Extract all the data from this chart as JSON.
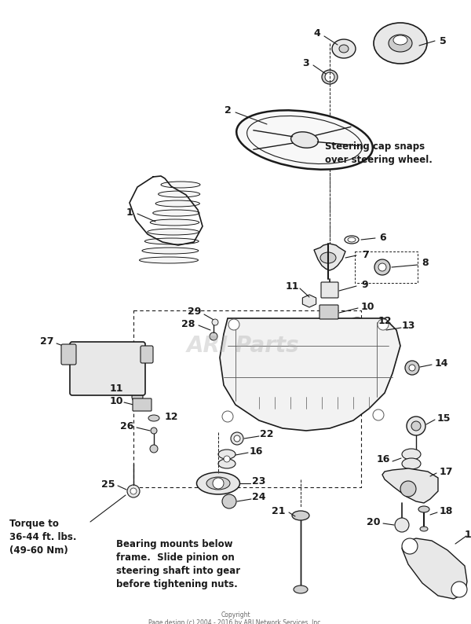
{
  "background_color": "#ffffff",
  "watermark": "ARI Parts",
  "copyright": "Copyright\nPage design (c) 2004 - 2016 by ARI Network Services, Inc.",
  "annotation_top_right": "Steering cap snaps\nover steering wheel.",
  "annotation_bottom_left_1": "Torque to\n36-44 ft. lbs.\n(49-60 Nm)",
  "annotation_bottom_left_2": "Bearing mounts below\nframe.  Slide pinion on\nsteering shaft into gear\nbefore tightening nuts.",
  "lc": "#1a1a1a",
  "gc": "#555555",
  "fc_light": "#e8e8e8",
  "fc_mid": "#d0d0d0",
  "fc_dark": "#b0b0b0"
}
